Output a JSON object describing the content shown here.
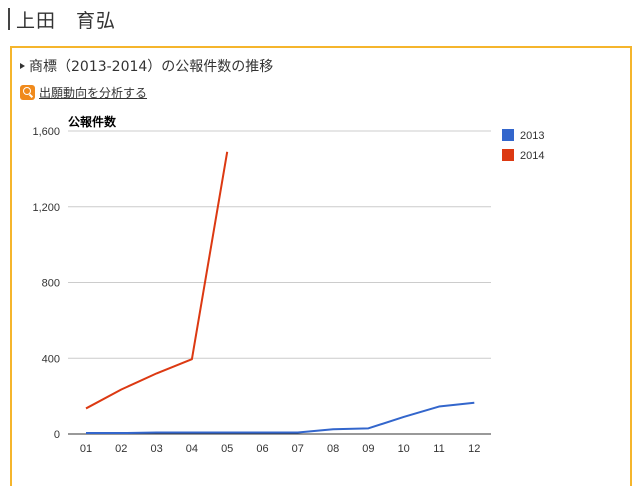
{
  "header": {
    "name": "上田　育弘"
  },
  "section": {
    "title": "商標（2013-2014）の公報件数の推移",
    "link_label": "出願動向を分析する"
  },
  "chart_data": {
    "type": "line",
    "title": "公報件数",
    "xlabel": "",
    "ylabel": "",
    "categories": [
      "01",
      "02",
      "03",
      "04",
      "05",
      "06",
      "07",
      "08",
      "09",
      "10",
      "11",
      "12"
    ],
    "ylim": [
      0,
      1600
    ],
    "yticks": [
      0,
      400,
      800,
      1200,
      1600
    ],
    "ytick_labels": [
      "0",
      "400",
      "800",
      "1,200",
      "1,600"
    ],
    "grid": true,
    "legend_position": "right",
    "series": [
      {
        "name": "2013",
        "color": "#3366cc",
        "values": [
          5,
          5,
          8,
          8,
          8,
          8,
          8,
          25,
          30,
          90,
          145,
          165
        ]
      },
      {
        "name": "2014",
        "color": "#dc3912",
        "values": [
          135,
          235,
          320,
          395,
          1490,
          null,
          null,
          null,
          null,
          null,
          null,
          null
        ]
      }
    ]
  }
}
